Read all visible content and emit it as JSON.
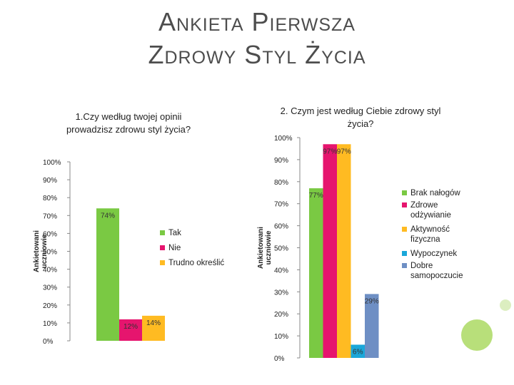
{
  "slide": {
    "title_line1": "Ankieta Pierwsza",
    "title_line2": "Zdrowy Styl Życia"
  },
  "colors": {
    "green": "#7ac943",
    "magenta": "#e6156e",
    "orange": "#ffbb22",
    "cyan": "#1aa7d9",
    "steel": "#6e8fc4",
    "deco_green": "#b8df7a",
    "deco_light": "#dceec0"
  },
  "chart_data": [
    {
      "type": "bar",
      "title_lines": [
        "1.Czy według twojej opinii",
        "prowadzisz zdrowu styl życia?"
      ],
      "ylabel_lines": [
        "Ankietowani",
        "uczniowie"
      ],
      "ylim": [
        0,
        100
      ],
      "yticks": [
        "0%",
        "10%",
        "20%",
        "30%",
        "40%",
        "50%",
        "60%",
        "70%",
        "80%",
        "90%",
        "100%"
      ],
      "series": [
        {
          "name": "Tak",
          "value": 74,
          "label": "74%",
          "color": "#7ac943"
        },
        {
          "name": "Nie",
          "value": 12,
          "label": "12%",
          "color": "#e6156e"
        },
        {
          "name": "Trudno określić",
          "value": 14,
          "label": "14%",
          "color": "#ffbb22"
        }
      ],
      "legend": "right"
    },
    {
      "type": "bar",
      "title_lines": [
        "2. Czym jest według Ciebie zdrowy styl",
        "życia?"
      ],
      "ylabel_lines": [
        "Ankietowani",
        "uczniowie"
      ],
      "ylim": [
        0,
        100
      ],
      "yticks": [
        "0%",
        "10%",
        "20%",
        "30%",
        "40%",
        "50%",
        "60%",
        "70%",
        "80%",
        "90%",
        "100%"
      ],
      "series": [
        {
          "name": "Brak nałogów",
          "value": 77,
          "label": "77%",
          "color": "#7ac943"
        },
        {
          "name": "Zdrowe odżywianie",
          "legend_lines": [
            "Zdrowe",
            "odżywianie"
          ],
          "value": 97,
          "label": "97%",
          "color": "#e6156e"
        },
        {
          "name": "Aktywność fizyczna",
          "legend_lines": [
            "Aktywność",
            "fizyczna"
          ],
          "value": 97,
          "label": "97%",
          "color": "#ffbb22"
        },
        {
          "name": "Wypoczynek",
          "value": 6,
          "label": "6%",
          "color": "#1aa7d9"
        },
        {
          "name": "Dobre samopoczucie",
          "legend_lines": [
            "Dobre",
            "samopoczucie"
          ],
          "value": 29,
          "label": "29%",
          "color": "#6e8fc4"
        }
      ],
      "legend": "right"
    }
  ]
}
